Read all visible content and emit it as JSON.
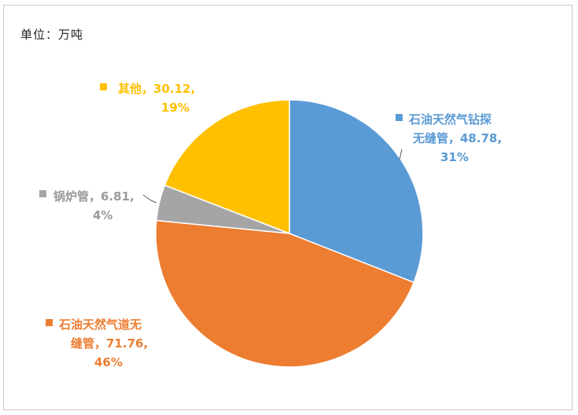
{
  "unit_label": "单位：万吨",
  "chart_data": {
    "type": "pie",
    "title": "",
    "slices": [
      {
        "name": "石油天然气钻探无缝管",
        "value": 48.78,
        "percent": "31%",
        "color": "#5b9bd5",
        "label_lines": [
          "石油天然气钻探",
          "无缝管，48.78,",
          "31%"
        ]
      },
      {
        "name": "石油天然气道无缝管",
        "value": 71.76,
        "percent": "46%",
        "color": "#ed7d31",
        "label_lines": [
          "石油天然气道无",
          "缝管，71.76,",
          "46%"
        ]
      },
      {
        "name": "锅炉管",
        "value": 6.81,
        "percent": "4%",
        "color": "#a5a5a5",
        "label_lines": [
          "锅炉管，6.81,",
          "4%"
        ]
      },
      {
        "name": "其他",
        "value": 30.12,
        "percent": "19%",
        "color": "#ffc000",
        "label_lines": [
          "其他，30.12,",
          "19%"
        ]
      }
    ],
    "start_angle_deg": 0,
    "direction": "clockwise",
    "legend": "none",
    "data_labels": "outside"
  }
}
